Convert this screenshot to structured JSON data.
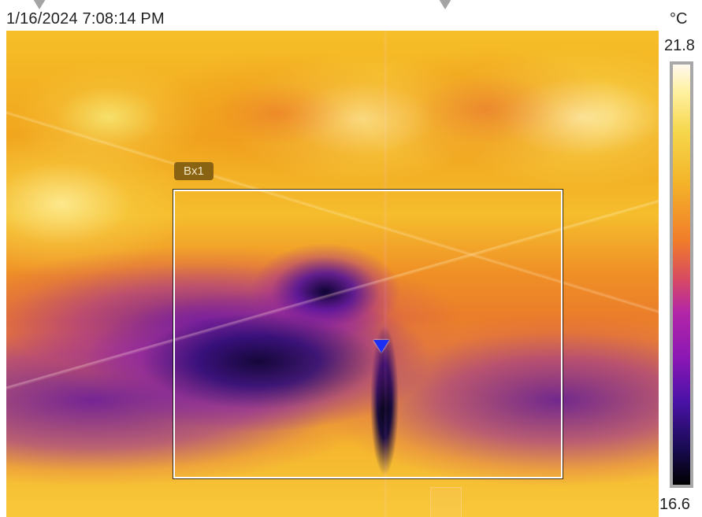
{
  "header": {
    "timestamp": "1/16/2024 7:08:14 PM",
    "unit": "°C"
  },
  "scale": {
    "max": "21.8",
    "min": "16.6",
    "palette": "ironbow",
    "gradient_colors": [
      "#fff8ef",
      "#fff2a5",
      "#f5d74b",
      "#f4b429",
      "#f17c2a",
      "#d84a62",
      "#b326a7",
      "#8a17b4",
      "#4b12a8",
      "#1a0b55",
      "#000000"
    ]
  },
  "measurement": {
    "box_label": "Bx1",
    "box_color": "#ffffff",
    "label_bg": "#8a6312",
    "cold_spot_color": "#1b2ff4"
  },
  "icons": {
    "cold_spot": "blue-down-triangle-icon"
  }
}
